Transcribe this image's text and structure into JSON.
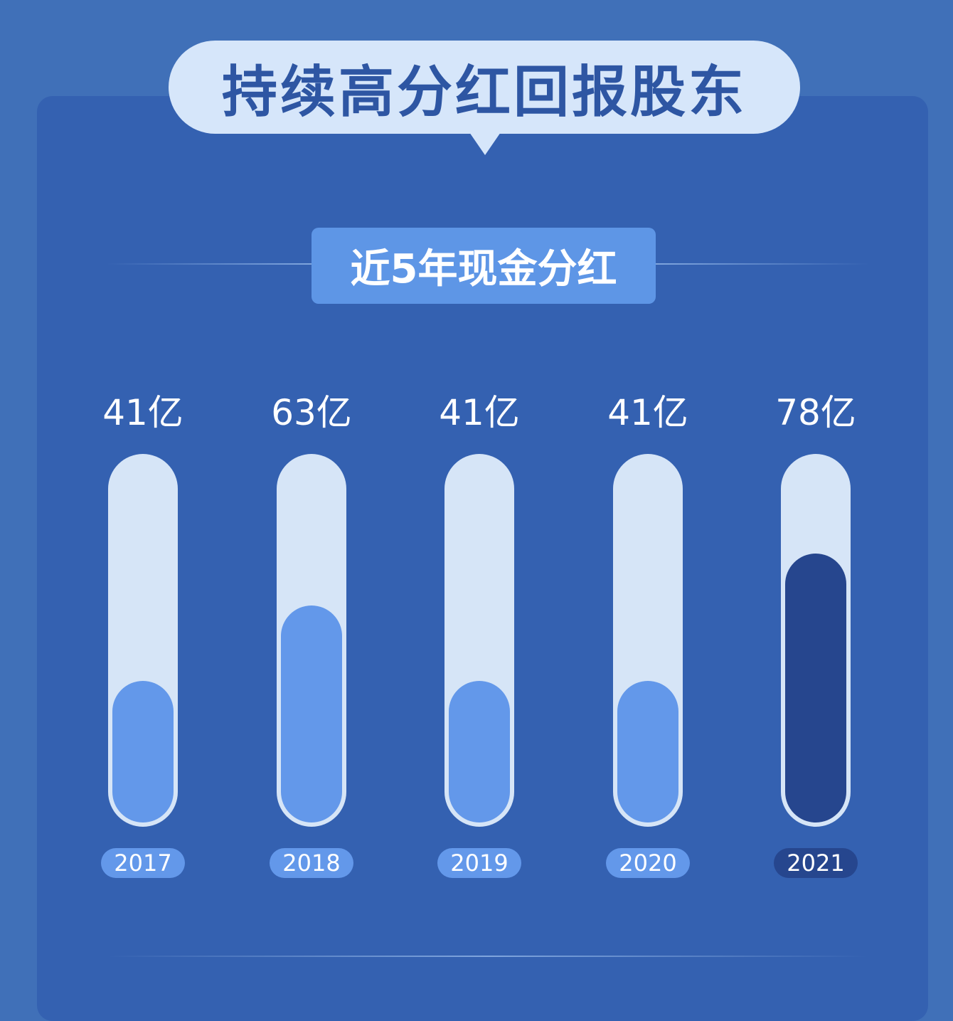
{
  "title": "持续高分红回报股东",
  "subtitle": "近5年现金分红",
  "chart_data": {
    "type": "bar",
    "title": "近5年现金分红",
    "categories": [
      "2017",
      "2018",
      "2019",
      "2020",
      "2021"
    ],
    "values": [
      41,
      63,
      41,
      41,
      78
    ],
    "value_labels": [
      "41亿",
      "63亿",
      "41亿",
      "41亿",
      "78亿"
    ],
    "unit": "亿",
    "colors": {
      "normal": "#6398ea",
      "highlight": "#26468e",
      "track": "#d6e5f7"
    },
    "highlight_category": "2021"
  }
}
